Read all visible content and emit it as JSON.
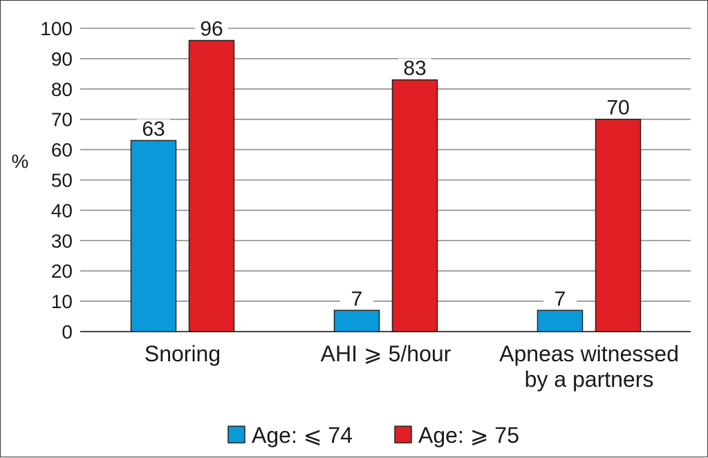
{
  "chart_data": {
    "type": "bar",
    "title": "",
    "xlabel": "",
    "ylabel": "%",
    "ylim": [
      0,
      100
    ],
    "yticks": [
      0,
      10,
      20,
      30,
      40,
      50,
      60,
      70,
      80,
      90,
      100
    ],
    "grid": true,
    "legend_position": "bottom",
    "categories": [
      [
        "Snoring"
      ],
      [
        "AHI ⩾ 5/hour"
      ],
      [
        "Apneas witnessed",
        "by a partners"
      ]
    ],
    "series": [
      {
        "name": "Age: ⩽ 74",
        "color": "#0a9ad9",
        "values": [
          63,
          7,
          7
        ]
      },
      {
        "name": "Age: ⩾ 75",
        "color": "#e01f25",
        "values": [
          96,
          83,
          70
        ]
      }
    ]
  }
}
